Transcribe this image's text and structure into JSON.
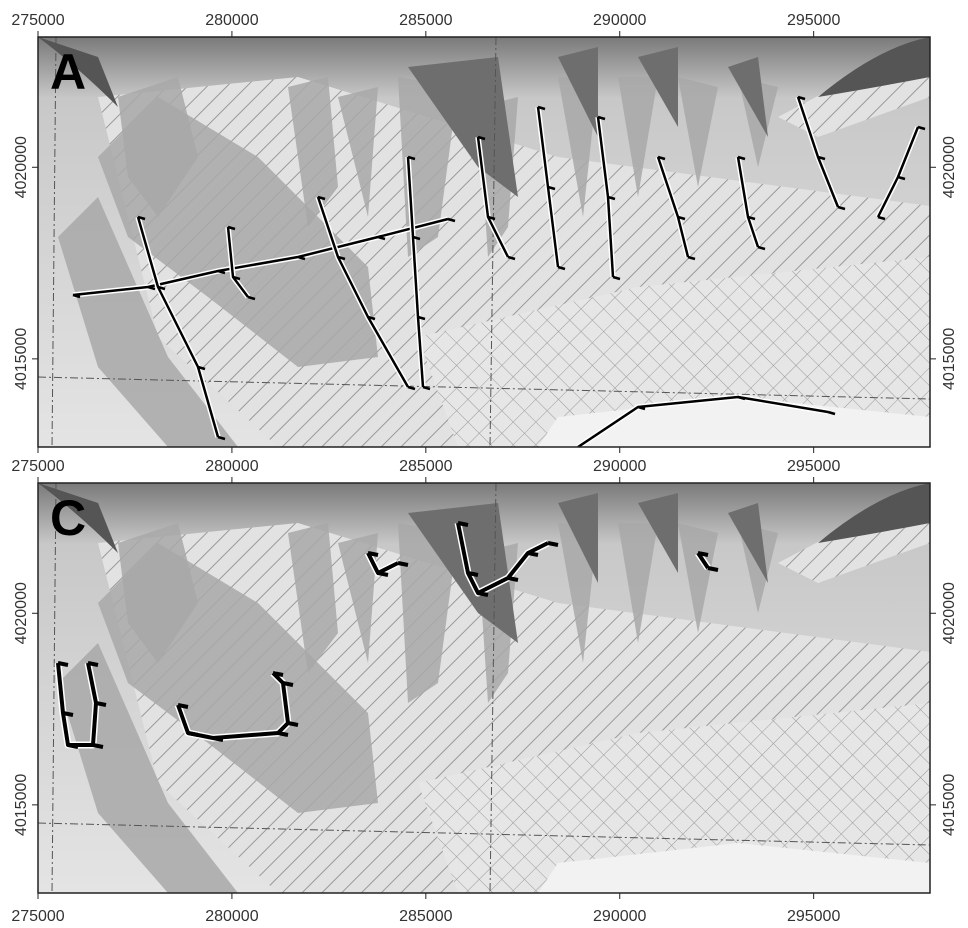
{
  "panels": [
    {
      "label": "A",
      "xlim": [
        275000,
        298000
      ],
      "ylim": [
        4012700,
        4023400
      ],
      "xticks": [
        275000,
        280000,
        285000,
        290000,
        295000
      ],
      "yticks": [
        4015000,
        4020000
      ]
    },
    {
      "label": "C",
      "xlim": [
        275000,
        298000
      ],
      "ylim": [
        4012700,
        4023400
      ],
      "xticks": [
        275000,
        280000,
        285000,
        290000,
        295000
      ],
      "yticks": [
        4015000,
        4020000
      ]
    }
  ]
}
